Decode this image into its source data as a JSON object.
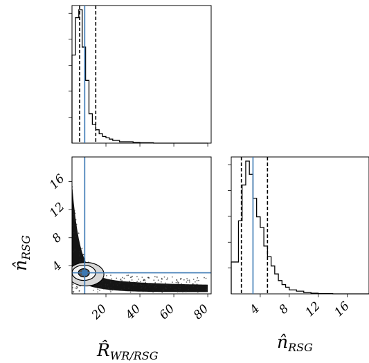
{
  "chart_data": [
    {
      "panel": "hist-R-WR-RSG",
      "type": "histogram",
      "xlim": [
        0,
        82
      ],
      "xticks": [
        20,
        40,
        60,
        80
      ],
      "bins_edges": [
        0,
        2,
        4,
        6,
        8,
        10,
        12,
        14,
        16,
        18,
        20,
        22,
        24,
        26,
        28,
        30,
        32,
        34,
        36,
        40,
        48,
        80
      ],
      "counts": [
        0.66,
        0.94,
        1.0,
        0.72,
        0.47,
        0.22,
        0.14,
        0.1,
        0.07,
        0.05,
        0.04,
        0.03,
        0.02,
        0.02,
        0.01,
        0.01,
        0.01,
        0.01,
        0.005,
        0.003,
        0.0
      ],
      "quantiles": [
        4.5,
        14.0
      ],
      "truth": 7.5
    },
    {
      "panel": "scatter-R-vs-n",
      "type": "scatter",
      "xlabel": "R̂",
      "xlabel_sub": "WR/RSG",
      "ylabel": "n̂",
      "ylabel_sub": "RSG",
      "xlim": [
        0,
        82
      ],
      "ylim": [
        0,
        19.5
      ],
      "xticks": [
        20,
        40,
        60,
        80
      ],
      "yticks": [
        4,
        8,
        12,
        16
      ],
      "truth": {
        "x": 7.5,
        "y": 3.0
      },
      "contour_center": {
        "x": 7.0,
        "y": 3.0
      }
    },
    {
      "panel": "hist-n-RSG",
      "type": "histogram",
      "xlabel": "n̂",
      "xlabel_sub": "RSG",
      "xlim": [
        0,
        19
      ],
      "xticks": [
        4,
        8,
        12,
        16
      ],
      "bins_edges": [
        0,
        1,
        1.5,
        2,
        2.5,
        3,
        3.5,
        4,
        4.5,
        5,
        5.5,
        6,
        6.5,
        7,
        7.5,
        8,
        9,
        10,
        11,
        12,
        14,
        19
      ],
      "counts": [
        0.24,
        0.55,
        0.82,
        1.0,
        0.9,
        0.72,
        0.58,
        0.5,
        0.36,
        0.28,
        0.21,
        0.15,
        0.1,
        0.07,
        0.05,
        0.03,
        0.02,
        0.01,
        0.005,
        0.002,
        0.0
      ],
      "quantiles": [
        1.4,
        5.0
      ],
      "truth": 3.0
    }
  ]
}
